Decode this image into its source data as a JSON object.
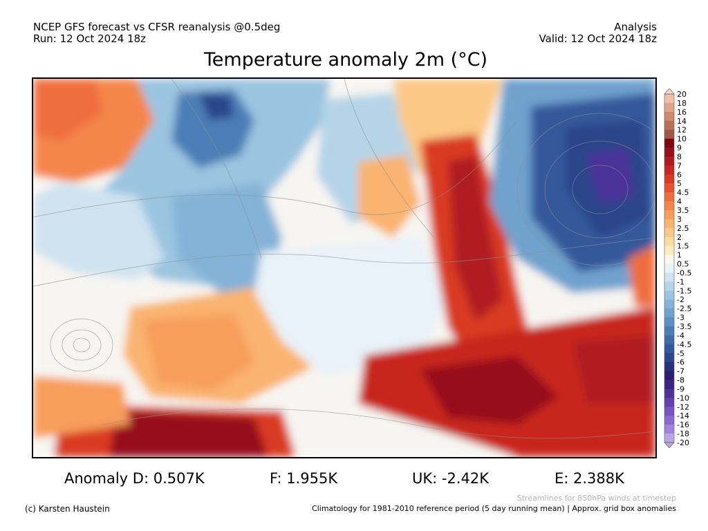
{
  "header": {
    "model_line": "NCEP GFS forecast vs CFSR reanalysis @0.5deg",
    "run_line": "Run: 12 Oct 2024 18z",
    "type_line": "Analysis",
    "valid_line": "Valid: 12 Oct 2024 18z"
  },
  "title": "Temperature anomaly 2m (°C)",
  "colorbar": {
    "labels": [
      "20",
      "18",
      "16",
      "14",
      "12",
      "10",
      "9",
      "8",
      "7",
      "6",
      "5",
      "4.5",
      "4",
      "3.5",
      "3",
      "2.5",
      "2",
      "1.5",
      "1",
      "0.5",
      "-0.5",
      "-1",
      "-1.5",
      "-2",
      "-2.5",
      "-3",
      "-3.5",
      "-4",
      "-4.5",
      "-5",
      "-6",
      "-7",
      "-8",
      "-9",
      "-10",
      "-12",
      "-14",
      "-16",
      "-18",
      "-20"
    ],
    "colors": [
      "#f9dccd",
      "#efbfa8",
      "#e2a488",
      "#cf8a6d",
      "#b87058",
      "#a15848",
      "#7e0811",
      "#97101a",
      "#b01a20",
      "#c8271f",
      "#d93a24",
      "#e65431",
      "#ef6e3d",
      "#f4864b",
      "#f89d5c",
      "#fab36f",
      "#fcc886",
      "#fddca0",
      "#fdebc0",
      "#fbf7ea",
      "#e9f2f8",
      "#cfe3f0",
      "#b5d4e8",
      "#9bc4e0",
      "#84b3d7",
      "#6fa2cd",
      "#5c90c2",
      "#4b7eb6",
      "#3d6ca9",
      "#34599b",
      "#2c458a",
      "#2a2f7a",
      "#2c1f6e",
      "#3b2584",
      "#4c3299",
      "#6142ae",
      "#7655c2",
      "#8b6ad0",
      "#a184dc",
      "#bca6e7"
    ]
  },
  "stats": {
    "domain_label": "Anomaly D: 0.507K",
    "france_label": "F: 1.955K",
    "uk_label": "UK: -2.42K",
    "europe_label": "E: 2.388K"
  },
  "footer": {
    "credit": "(c) Karsten Haustein",
    "streamlines_note": "Streamlines for 850hPa winds at timestep",
    "climatology_note": "Climatology for 1981-2010 reference period (5 day running mean) | Approx. grid box anomalies"
  }
}
